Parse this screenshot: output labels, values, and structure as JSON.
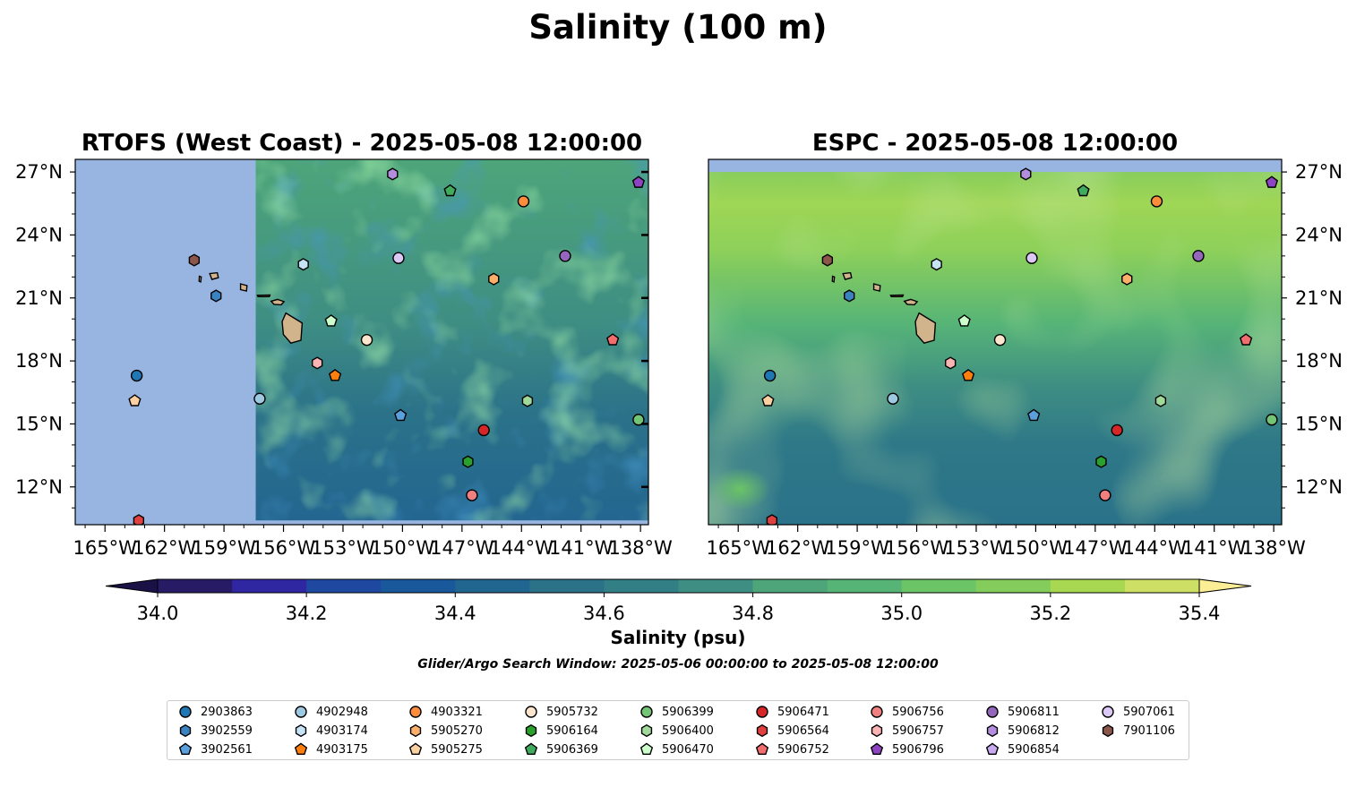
{
  "figure": {
    "title": "Salinity (100 m)",
    "search_window": "Glider/Argo Search Window: 2025-05-06 00:00:00 to 2025-05-08 12:00:00"
  },
  "chart_data": [
    {
      "type": "heatmap",
      "title": "RTOFS (West Coast) - 2025-05-08 12:00:00",
      "xlim": [
        -166.5,
        -137.6
      ],
      "ylim": [
        10.2,
        27.6
      ],
      "xticks": [
        "165°W",
        "162°W",
        "159°W",
        "156°W",
        "153°W",
        "150°W",
        "147°W",
        "144°W",
        "141°W",
        "138°W"
      ],
      "yticks": [
        "12°N",
        "15°N",
        "18°N",
        "21°N",
        "24°N",
        "27°N"
      ],
      "model_domain_west_edge_lon": -157.4,
      "no_data_color": "#98b4e0",
      "grid": false
    },
    {
      "type": "heatmap",
      "title": "ESPC - 2025-05-08 12:00:00",
      "xlim": [
        -166.5,
        -137.6
      ],
      "ylim": [
        10.2,
        27.6
      ],
      "xticks": [
        "165°W",
        "162°W",
        "159°W",
        "156°W",
        "153°W",
        "150°W",
        "147°W",
        "144°W",
        "141°W",
        "138°W"
      ],
      "yticks": [
        "12°N",
        "15°N",
        "18°N",
        "21°N",
        "24°N",
        "27°N"
      ],
      "no_data_color": "#98b4e0",
      "grid": false
    }
  ],
  "colorbar": {
    "label": "Salinity (psu)",
    "min": 34.0,
    "max": 35.4,
    "ticks": [
      "34.0",
      "34.2",
      "34.4",
      "34.6",
      "34.8",
      "35.0",
      "35.2",
      "35.4"
    ],
    "extend": "both",
    "colors": [
      "#281b65",
      "#2f26a1",
      "#1f48a0",
      "#19589a",
      "#216691",
      "#2b7289",
      "#337f86",
      "#3f8e83",
      "#4ea57a",
      "#56b477",
      "#6bc466",
      "#84cd5c",
      "#a8d852",
      "#cddf65",
      "#fbee95"
    ],
    "under_color": "#1a1147"
  },
  "floats": [
    {
      "id": "2903863",
      "marker": "circle",
      "color": "#1f77b4",
      "lon": -163.4,
      "lat": 17.3
    },
    {
      "id": "3902559",
      "marker": "hexagon",
      "color": "#3a82c0",
      "lon": -159.4,
      "lat": 21.1
    },
    {
      "id": "3902561",
      "marker": "pentagon",
      "color": "#5aa0dc",
      "lon": -150.1,
      "lat": 15.4
    },
    {
      "id": "4902948",
      "marker": "circle",
      "color": "#9ecae1",
      "lon": -157.2,
      "lat": 16.2
    },
    {
      "id": "4903174",
      "marker": "hexagon",
      "color": "#c6e2f5",
      "lon": -155.0,
      "lat": 22.6
    },
    {
      "id": "4903175",
      "marker": "pentagon",
      "color": "#ff7f0e",
      "lon": -153.4,
      "lat": 17.3
    },
    {
      "id": "4903321",
      "marker": "circle",
      "color": "#fd8d3c",
      "lon": -143.9,
      "lat": 25.6
    },
    {
      "id": "5905270",
      "marker": "hexagon",
      "color": "#fdae6b",
      "lon": -145.4,
      "lat": 21.9
    },
    {
      "id": "5905275",
      "marker": "pentagon",
      "color": "#fdd0a2",
      "lon": -163.5,
      "lat": 16.1
    },
    {
      "id": "5905732",
      "marker": "circle",
      "color": "#fee6ce",
      "lon": -151.8,
      "lat": 19.0
    },
    {
      "id": "5906164",
      "marker": "hexagon",
      "color": "#2ca02c",
      "lon": -146.7,
      "lat": 13.2
    },
    {
      "id": "5906369",
      "marker": "pentagon",
      "color": "#41ab5d",
      "lon": -147.6,
      "lat": 26.1
    },
    {
      "id": "5906399",
      "marker": "circle",
      "color": "#74c476",
      "lon": -138.1,
      "lat": 15.2
    },
    {
      "id": "5906400",
      "marker": "hexagon",
      "color": "#a1d99b",
      "lon": -143.7,
      "lat": 16.1
    },
    {
      "id": "5906470",
      "marker": "pentagon",
      "color": "#ccffcc",
      "lon": -153.6,
      "lat": 19.9
    },
    {
      "id": "5906471",
      "marker": "circle",
      "color": "#d62728",
      "lon": -145.9,
      "lat": 14.7
    },
    {
      "id": "5906564",
      "marker": "hexagon",
      "color": "#e04040",
      "lon": -163.3,
      "lat": 10.4
    },
    {
      "id": "5906752",
      "marker": "pentagon",
      "color": "#f26d6d",
      "lon": -139.4,
      "lat": 19.0
    },
    {
      "id": "5906756",
      "marker": "circle",
      "color": "#f08080",
      "lon": -146.5,
      "lat": 11.6
    },
    {
      "id": "5906757",
      "marker": "hexagon",
      "color": "#fbb4b4",
      "lon": -154.3,
      "lat": 17.9
    },
    {
      "id": "5906796",
      "marker": "pentagon",
      "color": "#8e44c2",
      "lon": -138.1,
      "lat": 26.5
    },
    {
      "id": "5906811",
      "marker": "circle",
      "color": "#9467bd",
      "lon": -141.8,
      "lat": 23.0
    },
    {
      "id": "5906812",
      "marker": "hexagon",
      "color": "#b48ede",
      "lon": -150.5,
      "lat": 26.9
    },
    {
      "id": "5906854",
      "marker": "pentagon",
      "color": "#c8aaf0",
      "lon": -138.1,
      "lat": 26.5,
      "hidden_on_map": true
    },
    {
      "id": "5907061",
      "marker": "circle",
      "color": "#dcc8f5",
      "lon": -150.2,
      "lat": 22.9
    },
    {
      "id": "7901106",
      "marker": "hexagon",
      "color": "#8c564b",
      "lon": -160.5,
      "lat": 22.8
    }
  ],
  "islands": [
    {
      "name": "Hawaii",
      "lon": -155.5,
      "lat": 19.6
    },
    {
      "name": "Maui",
      "lon": -156.3,
      "lat": 20.8
    },
    {
      "name": "Molokai",
      "lon": -157.0,
      "lat": 21.1
    },
    {
      "name": "Oahu",
      "lon": -158.0,
      "lat": 21.5
    },
    {
      "name": "Kauai",
      "lon": -159.5,
      "lat": 22.05
    },
    {
      "name": "Niihau",
      "lon": -160.2,
      "lat": 21.9
    }
  ],
  "land_color": "#d2b48c"
}
